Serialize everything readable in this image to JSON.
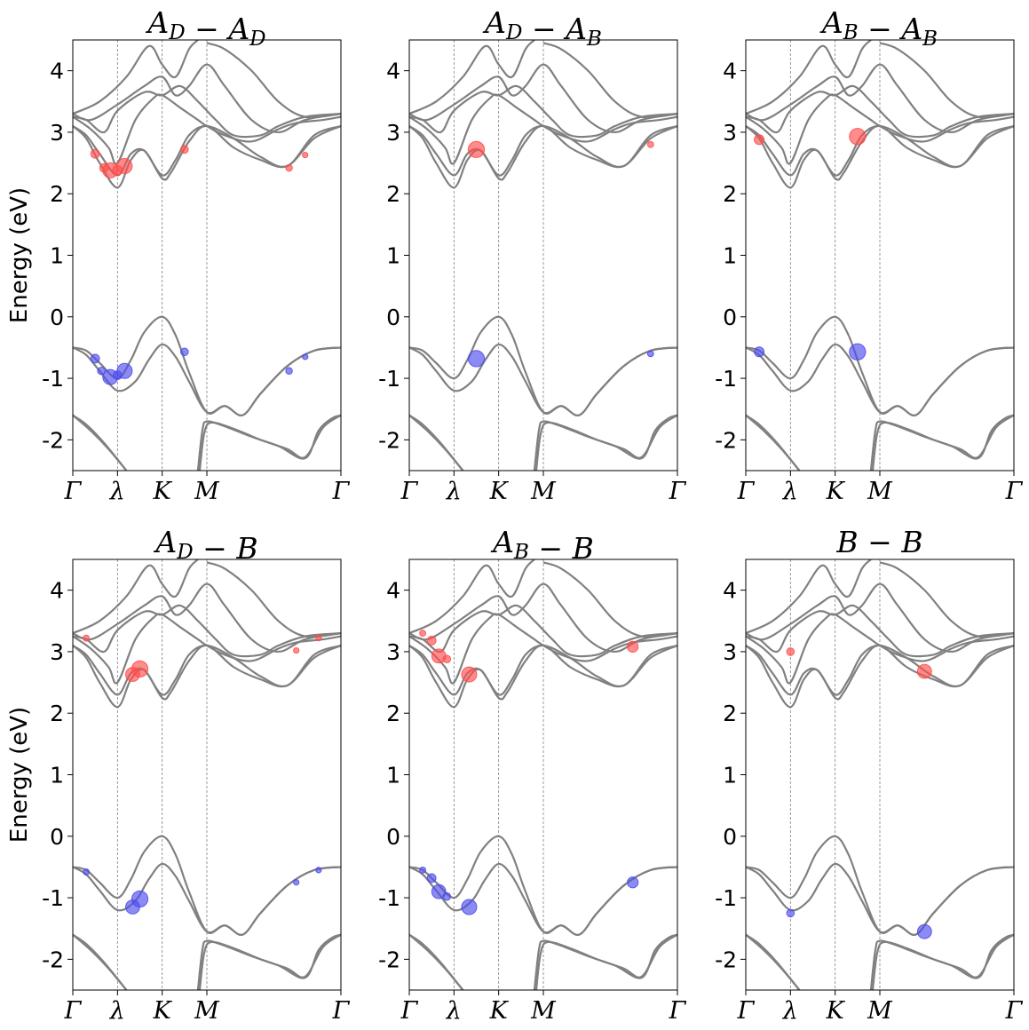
{
  "chart_data": {
    "type": "scatter",
    "description_note": "band structure with weighted exciton contributions",
    "ylabel": "Energy (eV)",
    "ylim": [
      -2.5,
      4.5
    ],
    "yticks": [
      -2,
      -1,
      0,
      1,
      2,
      3,
      4
    ],
    "ytick_labels": [
      "-2",
      "-1",
      "0",
      "1",
      "2",
      "3",
      "4"
    ],
    "xlim": [
      0,
      3
    ],
    "kpoints": [
      {
        "label": "Γ",
        "x": 0
      },
      {
        "label": "λ",
        "x": 0.5
      },
      {
        "label": "K",
        "x": 1.0
      },
      {
        "label": "M",
        "x": 1.5
      },
      {
        "label": "Γ",
        "x": 3.0
      }
    ],
    "colors": {
      "bands": "#808080",
      "conduction": "#ff4d4d",
      "valence": "#4d4ded",
      "guide": "#808080"
    },
    "bands": [
      {
        "name": "v3",
        "points": [
          [
            0,
            -1.6
          ],
          [
            0.2,
            -1.85
          ],
          [
            0.4,
            -2.15
          ],
          [
            0.6,
            -2.5
          ]
        ]
      },
      {
        "name": "v3b",
        "points": [
          [
            0,
            -1.6
          ],
          [
            0.15,
            -1.75
          ],
          [
            0.35,
            -2.05
          ],
          [
            0.6,
            -2.5
          ]
        ]
      },
      {
        "name": "v4",
        "points": [
          [
            1.4,
            -2.5
          ],
          [
            1.45,
            -1.85
          ],
          [
            1.5,
            -1.7
          ],
          [
            1.7,
            -1.78
          ],
          [
            2.0,
            -1.95
          ],
          [
            2.3,
            -2.1
          ],
          [
            2.6,
            -2.3
          ],
          [
            2.75,
            -1.85
          ],
          [
            2.9,
            -1.65
          ],
          [
            3.0,
            -1.6
          ]
        ]
      },
      {
        "name": "v4b",
        "points": [
          [
            1.42,
            -2.5
          ],
          [
            1.47,
            -1.9
          ],
          [
            1.55,
            -1.72
          ],
          [
            1.8,
            -1.82
          ],
          [
            2.1,
            -2.0
          ],
          [
            2.4,
            -2.15
          ],
          [
            2.6,
            -2.28
          ],
          [
            2.8,
            -1.8
          ],
          [
            3.0,
            -1.6
          ]
        ]
      },
      {
        "name": "v1",
        "points": [
          [
            0,
            -0.5
          ],
          [
            0.15,
            -0.55
          ],
          [
            0.3,
            -0.75
          ],
          [
            0.5,
            -1.0
          ],
          [
            0.65,
            -0.7
          ],
          [
            0.8,
            -0.25
          ],
          [
            1.0,
            0.0
          ],
          [
            1.15,
            -0.3
          ],
          [
            1.3,
            -0.9
          ],
          [
            1.5,
            -1.55
          ],
          [
            1.7,
            -1.45
          ],
          [
            1.9,
            -1.6
          ],
          [
            2.1,
            -1.25
          ],
          [
            2.4,
            -0.8
          ],
          [
            2.7,
            -0.55
          ],
          [
            3.0,
            -0.5
          ]
        ]
      },
      {
        "name": "v2",
        "points": [
          [
            0,
            -0.5
          ],
          [
            0.15,
            -0.62
          ],
          [
            0.3,
            -0.88
          ],
          [
            0.5,
            -1.2
          ],
          [
            0.7,
            -1.05
          ],
          [
            0.85,
            -0.7
          ],
          [
            1.0,
            -0.45
          ],
          [
            1.15,
            -0.65
          ],
          [
            1.3,
            -1.05
          ],
          [
            1.5,
            -1.55
          ],
          [
            1.7,
            -1.45
          ],
          [
            1.9,
            -1.6
          ],
          [
            2.1,
            -1.25
          ],
          [
            2.4,
            -0.8
          ],
          [
            2.7,
            -0.55
          ],
          [
            3.0,
            -0.5
          ]
        ]
      },
      {
        "name": "c1",
        "points": [
          [
            0,
            3.1
          ],
          [
            0.15,
            2.9
          ],
          [
            0.3,
            2.5
          ],
          [
            0.5,
            2.1
          ],
          [
            0.65,
            2.55
          ],
          [
            0.8,
            2.7
          ],
          [
            1.0,
            2.25
          ],
          [
            1.1,
            2.35
          ],
          [
            1.3,
            2.85
          ],
          [
            1.5,
            3.1
          ],
          [
            1.8,
            2.75
          ],
          [
            2.1,
            2.55
          ],
          [
            2.4,
            2.45
          ],
          [
            2.7,
            2.9
          ],
          [
            3.0,
            3.1
          ]
        ]
      },
      {
        "name": "c2",
        "points": [
          [
            0,
            3.1
          ],
          [
            0.15,
            2.95
          ],
          [
            0.3,
            2.65
          ],
          [
            0.5,
            2.3
          ],
          [
            0.65,
            2.65
          ],
          [
            0.8,
            2.7
          ],
          [
            1.0,
            2.3
          ],
          [
            1.15,
            2.55
          ],
          [
            1.3,
            2.95
          ],
          [
            1.5,
            3.1
          ],
          [
            1.8,
            2.9
          ],
          [
            2.1,
            2.6
          ],
          [
            2.4,
            2.45
          ],
          [
            2.7,
            2.95
          ],
          [
            3.0,
            3.1
          ]
        ]
      },
      {
        "name": "c3",
        "points": [
          [
            0,
            3.25
          ],
          [
            0.2,
            3.05
          ],
          [
            0.4,
            2.75
          ],
          [
            0.5,
            2.5
          ],
          [
            0.7,
            3.2
          ],
          [
            0.9,
            3.55
          ],
          [
            1.0,
            3.6
          ],
          [
            1.2,
            3.4
          ],
          [
            1.4,
            3.2
          ],
          [
            1.5,
            3.1
          ],
          [
            1.7,
            2.95
          ],
          [
            2.0,
            2.85
          ],
          [
            2.3,
            3.05
          ],
          [
            2.5,
            3.15
          ],
          [
            2.8,
            3.2
          ],
          [
            3.0,
            3.25
          ]
        ]
      },
      {
        "name": "c4",
        "points": [
          [
            0,
            3.25
          ],
          [
            0.15,
            3.2
          ],
          [
            0.35,
            3.0
          ],
          [
            0.5,
            3.35
          ],
          [
            0.8,
            3.65
          ],
          [
            1.0,
            3.6
          ],
          [
            1.2,
            3.75
          ],
          [
            1.4,
            3.5
          ],
          [
            1.6,
            3.2
          ],
          [
            1.8,
            2.95
          ],
          [
            2.1,
            2.95
          ],
          [
            2.3,
            3.1
          ],
          [
            2.6,
            3.25
          ],
          [
            3.0,
            3.3
          ]
        ]
      },
      {
        "name": "c5",
        "points": [
          [
            0,
            3.3
          ],
          [
            0.2,
            3.2
          ],
          [
            0.5,
            3.45
          ],
          [
            0.8,
            3.75
          ],
          [
            1.0,
            3.9
          ],
          [
            1.15,
            3.6
          ],
          [
            1.3,
            3.75
          ],
          [
            1.5,
            4.1
          ],
          [
            1.7,
            3.75
          ],
          [
            2.0,
            3.2
          ],
          [
            2.3,
            3.0
          ],
          [
            2.6,
            3.2
          ],
          [
            3.0,
            3.3
          ]
        ]
      },
      {
        "name": "c6",
        "points": [
          [
            0,
            3.3
          ],
          [
            0.3,
            3.5
          ],
          [
            0.6,
            3.9
          ],
          [
            0.85,
            4.4
          ],
          [
            1.0,
            4.1
          ],
          [
            1.15,
            3.9
          ],
          [
            1.3,
            4.35
          ],
          [
            1.4,
            4.5
          ]
        ]
      },
      {
        "name": "c7",
        "points": [
          [
            1.5,
            4.45
          ],
          [
            1.7,
            4.35
          ],
          [
            2.0,
            4.0
          ],
          [
            2.3,
            3.5
          ],
          [
            2.6,
            3.25
          ],
          [
            3.0,
            3.3
          ]
        ]
      }
    ],
    "panels": [
      {
        "title": {
          "a": "A",
          "a_sub": "D",
          "b": "A",
          "b_sub": "D"
        },
        "conduction_points": [
          {
            "x": 0.25,
            "y": 2.65,
            "w": 0.4
          },
          {
            "x": 0.35,
            "y": 2.42,
            "w": 0.4
          },
          {
            "x": 0.42,
            "y": 2.38,
            "w": 1.0
          },
          {
            "x": 0.5,
            "y": 2.38,
            "w": 0.5
          },
          {
            "x": 0.58,
            "y": 2.45,
            "w": 1.0
          },
          {
            "x": 1.25,
            "y": 2.72,
            "w": 0.3
          },
          {
            "x": 2.42,
            "y": 2.42,
            "w": 0.2
          },
          {
            "x": 2.6,
            "y": 2.63,
            "w": 0.1
          }
        ],
        "valence_points": [
          {
            "x": 0.25,
            "y": -0.68,
            "w": 0.4
          },
          {
            "x": 0.32,
            "y": -0.88,
            "w": 0.3
          },
          {
            "x": 0.42,
            "y": -0.98,
            "w": 1.0
          },
          {
            "x": 0.5,
            "y": -0.95,
            "w": 0.4
          },
          {
            "x": 0.58,
            "y": -0.88,
            "w": 1.0
          },
          {
            "x": 1.25,
            "y": -0.57,
            "w": 0.3
          },
          {
            "x": 2.42,
            "y": -0.88,
            "w": 0.2
          },
          {
            "x": 2.6,
            "y": -0.65,
            "w": 0.1
          }
        ]
      },
      {
        "title": {
          "a": "A",
          "a_sub": "D",
          "b": "A",
          "b_sub": "B"
        },
        "conduction_points": [
          {
            "x": 0.75,
            "y": 2.72,
            "w": 1.1
          },
          {
            "x": 2.7,
            "y": 2.8,
            "w": 0.15
          }
        ],
        "valence_points": [
          {
            "x": 0.75,
            "y": -0.68,
            "w": 1.1
          },
          {
            "x": 2.7,
            "y": -0.6,
            "w": 0.15
          }
        ]
      },
      {
        "title": {
          "a": "A",
          "a_sub": "B",
          "b": "A",
          "b_sub": "B"
        },
        "conduction_points": [
          {
            "x": 0.15,
            "y": 2.88,
            "w": 0.5
          },
          {
            "x": 1.25,
            "y": 2.93,
            "w": 1.1
          }
        ],
        "valence_points": [
          {
            "x": 0.15,
            "y": -0.57,
            "w": 0.5
          },
          {
            "x": 1.25,
            "y": -0.57,
            "w": 1.1
          }
        ]
      },
      {
        "title": {
          "a": "A",
          "a_sub": "D",
          "b": "B",
          "b_sub": ""
        },
        "conduction_points": [
          {
            "x": 0.15,
            "y": 3.22,
            "w": 0.15
          },
          {
            "x": 0.67,
            "y": 2.63,
            "w": 0.9
          },
          {
            "x": 0.75,
            "y": 2.72,
            "w": 1.1
          },
          {
            "x": 2.5,
            "y": 3.02,
            "w": 0.1
          },
          {
            "x": 2.75,
            "y": 3.22,
            "w": 0.1
          }
        ],
        "valence_points": [
          {
            "x": 0.15,
            "y": -0.58,
            "w": 0.15
          },
          {
            "x": 0.67,
            "y": -1.15,
            "w": 0.9
          },
          {
            "x": 0.75,
            "y": -1.02,
            "w": 1.1
          },
          {
            "x": 2.5,
            "y": -0.75,
            "w": 0.1
          },
          {
            "x": 2.75,
            "y": -0.55,
            "w": 0.1
          }
        ]
      },
      {
        "title": {
          "a": "A",
          "a_sub": "B",
          "b": "B",
          "b_sub": ""
        },
        "conduction_points": [
          {
            "x": 0.15,
            "y": 3.3,
            "w": 0.15
          },
          {
            "x": 0.25,
            "y": 3.18,
            "w": 0.4
          },
          {
            "x": 0.33,
            "y": 2.93,
            "w": 0.9
          },
          {
            "x": 0.42,
            "y": 2.88,
            "w": 0.3
          },
          {
            "x": 0.67,
            "y": 2.63,
            "w": 1.0
          },
          {
            "x": 2.5,
            "y": 3.08,
            "w": 0.6
          }
        ],
        "valence_points": [
          {
            "x": 0.15,
            "y": -0.55,
            "w": 0.15
          },
          {
            "x": 0.25,
            "y": -0.68,
            "w": 0.4
          },
          {
            "x": 0.33,
            "y": -0.9,
            "w": 0.9
          },
          {
            "x": 0.42,
            "y": -0.98,
            "w": 0.3
          },
          {
            "x": 0.67,
            "y": -1.15,
            "w": 1.0
          },
          {
            "x": 2.5,
            "y": -0.75,
            "w": 0.6
          }
        ]
      },
      {
        "title": {
          "a": "B",
          "a_sub": "",
          "b": "B",
          "b_sub": ""
        },
        "conduction_points": [
          {
            "x": 0.5,
            "y": 3.0,
            "w": 0.3
          },
          {
            "x": 2.0,
            "y": 2.68,
            "w": 0.9
          }
        ],
        "valence_points": [
          {
            "x": 0.5,
            "y": -1.25,
            "w": 0.3
          },
          {
            "x": 2.0,
            "y": -1.55,
            "w": 0.9
          }
        ]
      }
    ]
  }
}
